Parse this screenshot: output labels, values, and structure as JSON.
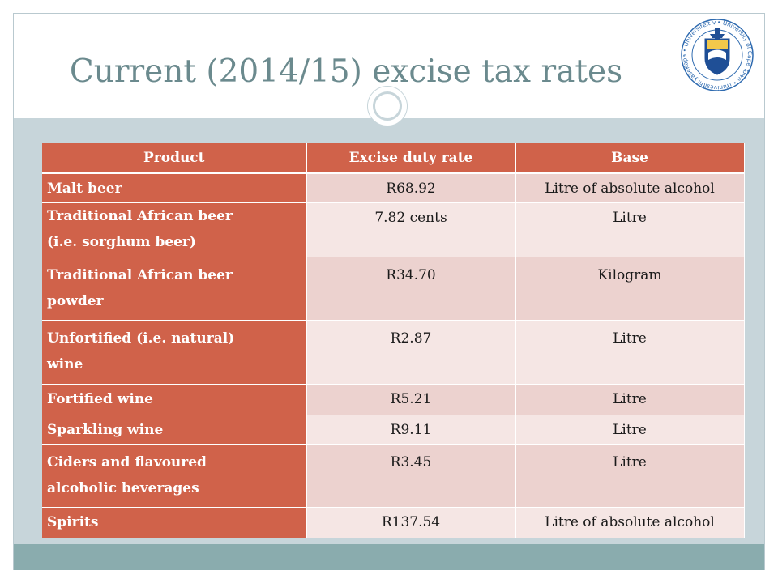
{
  "slide": {
    "title": "Current (2014/15) excise tax rates",
    "logo_text": "• University of Cape Town • iYunivesithi yaseKapa • Universiteit van Kaapstad"
  },
  "table": {
    "headers": [
      "Product",
      "Excise duty rate",
      "Base"
    ],
    "rows": [
      {
        "product": [
          "Malt beer"
        ],
        "rate": "R68.92",
        "base": "Litre of absolute alcohol"
      },
      {
        "product": [
          "Traditional African beer",
          "(i.e. sorghum beer)"
        ],
        "rate": "7.82 cents",
        "base": "Litre"
      },
      {
        "product": [
          "Traditional African beer",
          "powder"
        ],
        "rate": "R34.70",
        "base": "Kilogram"
      },
      {
        "product": [
          "Unfortified (i.e. natural)",
          "wine"
        ],
        "rate": "R2.87",
        "base": "Litre"
      },
      {
        "product": [
          "Fortified wine"
        ],
        "rate": "R5.21",
        "base": "Litre"
      },
      {
        "product": [
          "Sparkling wine"
        ],
        "rate": "R9.11",
        "base": "Litre"
      },
      {
        "product": [
          "Ciders and flavoured",
          "alcoholic beverages"
        ],
        "rate": "R3.45",
        "base": "Litre"
      },
      {
        "product": [
          "Spirits"
        ],
        "rate": "R137.54",
        "base": "Litre of absolute alcohol"
      }
    ]
  },
  "colors": {
    "header_fill": "#d0624a",
    "row_fill_dark": "#ecd2cf",
    "row_fill_light": "#f5e6e4",
    "title_color": "#6b8a8e",
    "band_color": "#c7d5da",
    "bottom_band_color": "#8aacae"
  }
}
